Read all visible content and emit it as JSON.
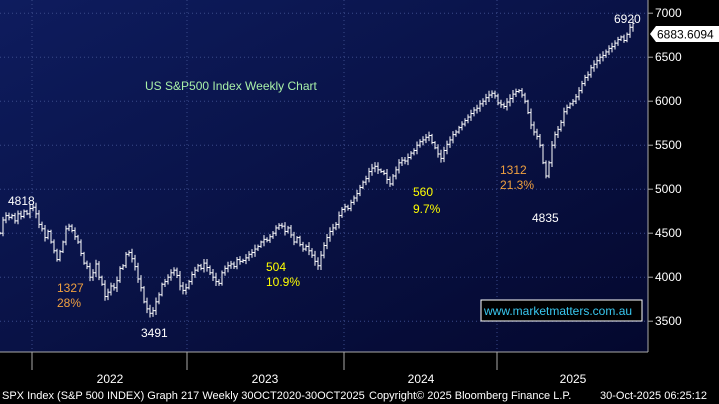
{
  "chart_data": {
    "type": "ohlc",
    "title": "US S&P500 Index Weekly Chart",
    "ylim": [
      3150,
      7150
    ],
    "y_ticks": [
      3500,
      4000,
      4500,
      5000,
      5500,
      6000,
      6500,
      7000
    ],
    "y_tick_labels": [
      "3500",
      "4000",
      "4500",
      "5000",
      "5500",
      "6000",
      "6500",
      "7000"
    ],
    "x_tick_labels": [
      "2022",
      "2023",
      "2024",
      "2025"
    ],
    "last_price_label": "6883.6094",
    "watermark": "www.marketmatters.com.au",
    "footer_left": "SPX Index (S&P 500 INDEX) Graph 217 Weekly 30OCT2020-30OCT2025",
    "footer_mid": "Copyright© 2025 Bloomberg Finance L.P.",
    "footer_right": "30-Oct-2025 06:25:12",
    "annotations": {
      "high_4818": "4818",
      "low_3491": "3491",
      "drop_1327": "1327",
      "drop_1327_pct": "28%",
      "drop_504": "504",
      "drop_504_pct": "10.9%",
      "drop_560": "560",
      "drop_560_pct": "9.7%",
      "drop_1312": "1312",
      "drop_1312_pct": "21.3%",
      "low_4835": "4835",
      "high_6920": "6920"
    },
    "close_path": [
      [
        0,
        4500
      ],
      [
        3,
        4650
      ],
      [
        6,
        4700
      ],
      [
        9,
        4680
      ],
      [
        12,
        4700
      ],
      [
        15,
        4640
      ],
      [
        18,
        4720
      ],
      [
        21,
        4690
      ],
      [
        24,
        4750
      ],
      [
        27,
        4720
      ],
      [
        30,
        4780
      ],
      [
        33,
        4795
      ],
      [
        36,
        4720
      ],
      [
        39,
        4600
      ],
      [
        42,
        4550
      ],
      [
        45,
        4450
      ],
      [
        48,
        4520
      ],
      [
        51,
        4400
      ],
      [
        54,
        4300
      ],
      [
        57,
        4200
      ],
      [
        60,
        4290
      ],
      [
        63,
        4400
      ],
      [
        66,
        4550
      ],
      [
        69,
        4580
      ],
      [
        72,
        4530
      ],
      [
        75,
        4460
      ],
      [
        78,
        4400
      ],
      [
        81,
        4270
      ],
      [
        84,
        4160
      ],
      [
        87,
        4120
      ],
      [
        90,
        4000
      ],
      [
        93,
        4050
      ],
      [
        96,
        4150
      ],
      [
        99,
        4000
      ],
      [
        102,
        3920
      ],
      [
        105,
        3780
      ],
      [
        108,
        3830
      ],
      [
        111,
        3900
      ],
      [
        114,
        3880
      ],
      [
        117,
        3960
      ],
      [
        120,
        4100
      ],
      [
        123,
        4130
      ],
      [
        126,
        4260
      ],
      [
        129,
        4280
      ],
      [
        132,
        4210
      ],
      [
        135,
        4120
      ],
      [
        138,
        3980
      ],
      [
        141,
        3880
      ],
      [
        144,
        3720
      ],
      [
        147,
        3640
      ],
      [
        150,
        3590
      ],
      [
        153,
        3620
      ],
      [
        156,
        3720
      ],
      [
        159,
        3800
      ],
      [
        162,
        3920
      ],
      [
        165,
        3950
      ],
      [
        168,
        4000
      ],
      [
        171,
        4050
      ],
      [
        174,
        4080
      ],
      [
        177,
        4020
      ],
      [
        180,
        3900
      ],
      [
        183,
        3850
      ],
      [
        186,
        3880
      ],
      [
        189,
        3950
      ],
      [
        192,
        4030
      ],
      [
        195,
        4080
      ],
      [
        198,
        4130
      ],
      [
        201,
        4100
      ],
      [
        204,
        4160
      ],
      [
        207,
        4110
      ],
      [
        210,
        4050
      ],
      [
        213,
        4000
      ],
      [
        216,
        3950
      ],
      [
        219,
        3930
      ],
      [
        222,
        4050
      ],
      [
        225,
        4100
      ],
      [
        228,
        4130
      ],
      [
        231,
        4150
      ],
      [
        234,
        4120
      ],
      [
        237,
        4200
      ],
      [
        240,
        4180
      ],
      [
        243,
        4190
      ],
      [
        246,
        4220
      ],
      [
        249,
        4260
      ],
      [
        252,
        4280
      ],
      [
        255,
        4320
      ],
      [
        258,
        4350
      ],
      [
        261,
        4400
      ],
      [
        264,
        4430
      ],
      [
        267,
        4420
      ],
      [
        270,
        4460
      ],
      [
        273,
        4500
      ],
      [
        276,
        4560
      ],
      [
        279,
        4590
      ],
      [
        282,
        4580
      ],
      [
        285,
        4520
      ],
      [
        288,
        4560
      ],
      [
        291,
        4480
      ],
      [
        294,
        4400
      ],
      [
        297,
        4450
      ],
      [
        300,
        4370
      ],
      [
        303,
        4320
      ],
      [
        306,
        4350
      ],
      [
        309,
        4300
      ],
      [
        312,
        4250
      ],
      [
        315,
        4180
      ],
      [
        318,
        4130
      ],
      [
        321,
        4250
      ],
      [
        324,
        4360
      ],
      [
        327,
        4450
      ],
      [
        330,
        4520
      ],
      [
        333,
        4560
      ],
      [
        336,
        4600
      ],
      [
        339,
        4700
      ],
      [
        342,
        4770
      ],
      [
        345,
        4800
      ],
      [
        348,
        4780
      ],
      [
        351,
        4850
      ],
      [
        354,
        4900
      ],
      [
        357,
        4950
      ],
      [
        360,
        5020
      ],
      [
        363,
        5080
      ],
      [
        366,
        5120
      ],
      [
        369,
        5200
      ],
      [
        372,
        5240
      ],
      [
        375,
        5260
      ],
      [
        378,
        5220
      ],
      [
        381,
        5200
      ],
      [
        384,
        5180
      ],
      [
        387,
        5110
      ],
      [
        390,
        5060
      ],
      [
        393,
        5150
      ],
      [
        396,
        5220
      ],
      [
        399,
        5300
      ],
      [
        402,
        5330
      ],
      [
        405,
        5320
      ],
      [
        408,
        5360
      ],
      [
        411,
        5410
      ],
      [
        414,
        5440
      ],
      [
        417,
        5500
      ],
      [
        420,
        5540
      ],
      [
        423,
        5560
      ],
      [
        426,
        5590
      ],
      [
        429,
        5610
      ],
      [
        432,
        5530
      ],
      [
        435,
        5470
      ],
      [
        438,
        5400
      ],
      [
        441,
        5350
      ],
      [
        444,
        5440
      ],
      [
        447,
        5510
      ],
      [
        450,
        5560
      ],
      [
        453,
        5620
      ],
      [
        456,
        5650
      ],
      [
        459,
        5700
      ],
      [
        462,
        5740
      ],
      [
        465,
        5780
      ],
      [
        468,
        5820
      ],
      [
        471,
        5860
      ],
      [
        474,
        5900
      ],
      [
        477,
        5920
      ],
      [
        480,
        5970
      ],
      [
        483,
        6000
      ],
      [
        486,
        6040
      ],
      [
        489,
        6070
      ],
      [
        492,
        6090
      ],
      [
        495,
        6060
      ],
      [
        498,
        5980
      ],
      [
        501,
        5960
      ],
      [
        504,
        5940
      ],
      [
        507,
        5990
      ],
      [
        510,
        6030
      ],
      [
        513,
        6080
      ],
      [
        516,
        6110
      ],
      [
        519,
        6120
      ],
      [
        522,
        6070
      ],
      [
        525,
        6000
      ],
      [
        528,
        5870
      ],
      [
        531,
        5730
      ],
      [
        534,
        5650
      ],
      [
        537,
        5600
      ],
      [
        540,
        5500
      ],
      [
        543,
        5300
      ],
      [
        546,
        5150
      ],
      [
        549,
        5300
      ],
      [
        552,
        5500
      ],
      [
        555,
        5620
      ],
      [
        558,
        5680
      ],
      [
        561,
        5760
      ],
      [
        564,
        5880
      ],
      [
        567,
        5930
      ],
      [
        570,
        5970
      ],
      [
        573,
        6000
      ],
      [
        576,
        6050
      ],
      [
        579,
        6120
      ],
      [
        582,
        6200
      ],
      [
        585,
        6270
      ],
      [
        588,
        6300
      ],
      [
        591,
        6380
      ],
      [
        594,
        6420
      ],
      [
        597,
        6460
      ],
      [
        600,
        6500
      ],
      [
        603,
        6520
      ],
      [
        606,
        6560
      ],
      [
        609,
        6600
      ],
      [
        612,
        6620
      ],
      [
        615,
        6660
      ],
      [
        618,
        6700
      ],
      [
        621,
        6730
      ],
      [
        624,
        6690
      ],
      [
        627,
        6760
      ],
      [
        630,
        6840
      ],
      [
        633,
        6884
      ]
    ]
  }
}
